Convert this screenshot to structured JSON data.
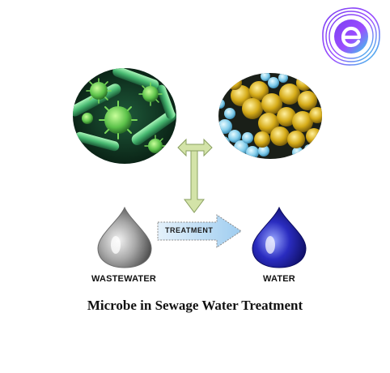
{
  "colors": {
    "logo_gradient": [
      "#6a3df0",
      "#8a4bff",
      "#3fd0e8"
    ],
    "bacteria_bg": "#0b2a1a",
    "bacteria_green": "#6ad86a",
    "staph_yellow": "#d8b21c",
    "staph_blue": "#7fd4f0",
    "double_arrow": "#cfe0a3",
    "treatment_arrow": "#b8d8f2",
    "dirty_drop": "#9a9a9a",
    "clean_drop": "#1a1aa0"
  },
  "icons": {
    "logo": "e-logo-icon",
    "bacteria": "bacteria-micrograph",
    "staph": "staphylococcus-micrograph",
    "double_arrow": "double-arrow",
    "treatment_arrow": "right-arrow",
    "dirty_drop": "grey-water-drop-icon",
    "clean_drop": "blue-water-drop-icon"
  },
  "diagram": {
    "treatment_label": "TREATMENT",
    "wastewater_label": "WASTEWATER",
    "water_label": "WATER",
    "caption": "Microbe in Sewage Water Treatment"
  }
}
